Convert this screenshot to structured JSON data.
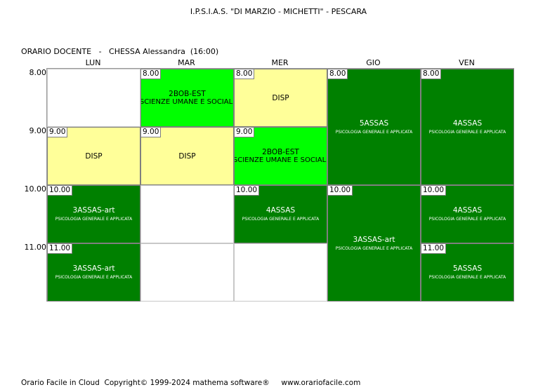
{
  "header": {
    "school": "I.P.S.I.A.S. \"DI MARZIO - MICHETTI\" - PESCARA",
    "teacher_line": "ORARIO DOCENTE   -   CHESSA Alessandra  (16:00)"
  },
  "days": [
    "LUN",
    "MAR",
    "MER",
    "GIO",
    "VEN"
  ],
  "times": [
    "8.00",
    "9.00",
    "10.00",
    "11.00"
  ],
  "lessons": [
    {
      "day": 0,
      "row": 1,
      "span": 1,
      "start": "9.00",
      "class": "DISP",
      "subject": "",
      "color": "yellow"
    },
    {
      "day": 0,
      "row": 2,
      "span": 1,
      "start": "10.00",
      "class": "3ASSAS-art",
      "subject": "PSICOLOGIA GENERALE E APPLICATA",
      "color": "dark"
    },
    {
      "day": 0,
      "row": 3,
      "span": 1,
      "start": "11.00",
      "class": "3ASSAS-art",
      "subject": "PSICOLOGIA GENERALE E APPLICATA",
      "color": "dark"
    },
    {
      "day": 1,
      "row": 0,
      "span": 1,
      "start": "8.00",
      "class": "2BOB-EST",
      "subject": "SCIENZE UMANE E SOCIALI",
      "color": "light"
    },
    {
      "day": 1,
      "row": 1,
      "span": 1,
      "start": "9.00",
      "class": "DISP",
      "subject": "",
      "color": "yellow"
    },
    {
      "day": 2,
      "row": 0,
      "span": 1,
      "start": "8.00",
      "class": "DISP",
      "subject": "",
      "color": "yellow"
    },
    {
      "day": 2,
      "row": 1,
      "span": 1,
      "start": "9.00",
      "class": "2BOB-EST",
      "subject": "SCIENZE UMANE E SOCIALI",
      "color": "light"
    },
    {
      "day": 2,
      "row": 2,
      "span": 1,
      "start": "10.00",
      "class": "4ASSAS",
      "subject": "PSICOLOGIA GENERALE E APPLICATA",
      "color": "dark"
    },
    {
      "day": 3,
      "row": 0,
      "span": 2,
      "start": "8.00",
      "class": "5ASSAS",
      "subject": "PSICOLOGIA GENERALE E APPLICATA",
      "color": "dark"
    },
    {
      "day": 3,
      "row": 2,
      "span": 2,
      "start": "10.00",
      "class": "3ASSAS-art",
      "subject": "PSICOLOGIA GENERALE E APPLICATA",
      "color": "dark"
    },
    {
      "day": 4,
      "row": 0,
      "span": 2,
      "start": "8.00",
      "class": "4ASSAS",
      "subject": "PSICOLOGIA GENERALE E APPLICATA",
      "color": "dark"
    },
    {
      "day": 4,
      "row": 2,
      "span": 1,
      "start": "10.00",
      "class": "4ASSAS",
      "subject": "PSICOLOGIA GENERALE E APPLICATA",
      "color": "dark"
    },
    {
      "day": 4,
      "row": 3,
      "span": 1,
      "start": "11.00",
      "class": "5ASSAS",
      "subject": "PSICOLOGIA GENERALE E APPLICATA",
      "color": "dark"
    }
  ],
  "colors": {
    "dark": "#008000",
    "light": "#00ff00",
    "yellow": "#ffff99"
  },
  "footer": "Orario Facile in Cloud  Copyright© 1999-2024 mathema software®     www.orariofacile.com"
}
